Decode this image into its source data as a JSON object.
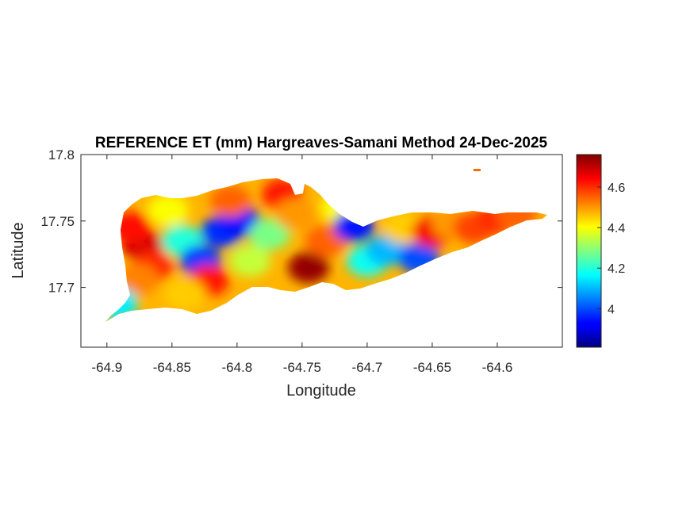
{
  "chart_data": {
    "type": "heatmap",
    "title": "REFERENCE ET (mm) Hargreaves-Samani Method  24-Dec-2025",
    "xlabel": "Longitude",
    "ylabel": "Latitude",
    "xlim": [
      -64.92,
      -64.55
    ],
    "ylim": [
      17.655,
      17.8
    ],
    "x_ticks": [
      -64.9,
      -64.85,
      -64.8,
      -64.75,
      -64.7,
      -64.65,
      -64.6
    ],
    "x_tick_labels": [
      "-64.9",
      "-64.85",
      "-64.8",
      "-64.75",
      "-64.7",
      "-64.65",
      "-64.6"
    ],
    "y_ticks": [
      17.7,
      17.75,
      17.8
    ],
    "y_tick_labels": [
      "17.7",
      "17.75",
      "17.8"
    ],
    "colorbar": {
      "colormap": "jet",
      "clim": [
        3.81,
        4.76
      ],
      "ticks": [
        4,
        4.2,
        4.4,
        4.6
      ],
      "tick_labels": [
        "4",
        "4.2",
        "4.4",
        "4.6"
      ]
    },
    "grid": false,
    "regions": [
      {
        "lon": -64.873,
        "lat": 17.732,
        "value": 4.68
      },
      {
        "lon": -64.882,
        "lat": 17.745,
        "value": 4.63
      },
      {
        "lon": -64.865,
        "lat": 17.716,
        "value": 4.6
      },
      {
        "lon": -64.876,
        "lat": 17.706,
        "value": 4.52
      },
      {
        "lon": -64.853,
        "lat": 17.758,
        "value": 4.4
      },
      {
        "lon": -64.842,
        "lat": 17.735,
        "value": 4.2
      },
      {
        "lon": -64.828,
        "lat": 17.72,
        "value": 3.98
      },
      {
        "lon": -64.812,
        "lat": 17.742,
        "value": 3.97
      },
      {
        "lon": -64.798,
        "lat": 17.75,
        "value": 3.94
      },
      {
        "lon": -64.822,
        "lat": 17.705,
        "value": 4.62
      },
      {
        "lon": -64.805,
        "lat": 17.765,
        "value": 4.55
      },
      {
        "lon": -64.79,
        "lat": 17.72,
        "value": 4.35
      },
      {
        "lon": -64.775,
        "lat": 17.74,
        "value": 4.28
      },
      {
        "lon": -64.765,
        "lat": 17.77,
        "value": 4.62
      },
      {
        "lon": -64.745,
        "lat": 17.715,
        "value": 4.74
      },
      {
        "lon": -64.755,
        "lat": 17.755,
        "value": 4.5
      },
      {
        "lon": -64.732,
        "lat": 17.735,
        "value": 4.55
      },
      {
        "lon": -64.72,
        "lat": 17.76,
        "value": 4.4
      },
      {
        "lon": -64.71,
        "lat": 17.746,
        "value": 3.95
      },
      {
        "lon": -64.7,
        "lat": 17.72,
        "value": 4.18
      },
      {
        "lon": -64.685,
        "lat": 17.728,
        "value": 4.1
      },
      {
        "lon": -64.672,
        "lat": 17.745,
        "value": 4.45
      },
      {
        "lon": -64.66,
        "lat": 17.722,
        "value": 4.0
      },
      {
        "lon": -64.65,
        "lat": 17.742,
        "value": 4.65
      },
      {
        "lon": -64.635,
        "lat": 17.748,
        "value": 4.5
      },
      {
        "lon": -64.618,
        "lat": 17.745,
        "value": 4.58
      },
      {
        "lon": -64.6,
        "lat": 17.752,
        "value": 4.6
      },
      {
        "lon": -64.585,
        "lat": 17.755,
        "value": 4.55
      },
      {
        "lon": -64.892,
        "lat": 17.688,
        "value": 4.15
      },
      {
        "lon": -64.84,
        "lat": 17.695,
        "value": 4.45
      }
    ]
  }
}
